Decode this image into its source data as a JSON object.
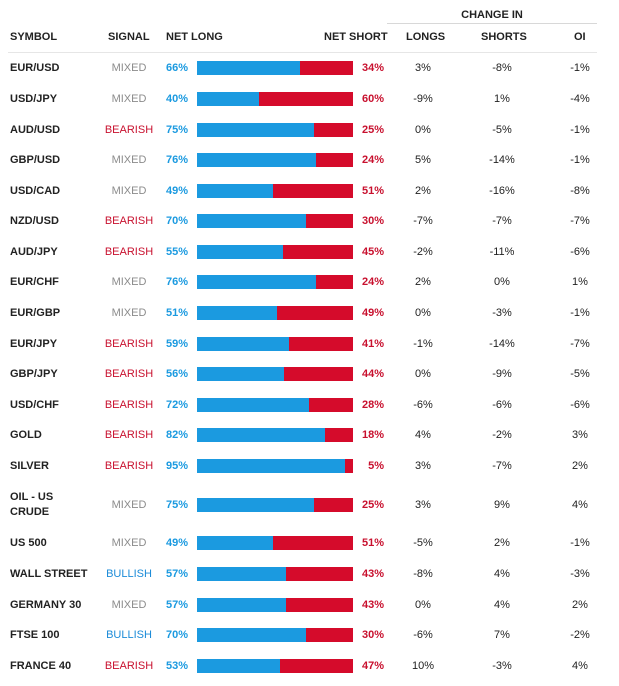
{
  "header": {
    "change_in": "CHANGE IN",
    "symbol": "SYMBOL",
    "signal": "SIGNAL",
    "net_long": "NET LONG",
    "net_short": "NET SHORT",
    "longs": "LONGS",
    "shorts": "SHORTS",
    "oi": "OI"
  },
  "colors": {
    "long": "#1b9ae0",
    "short": "#d50b2b",
    "bearish": "#c8102e",
    "bullish": "#1b8bd8",
    "mixed": "#8b8b8b"
  },
  "rows": [
    {
      "symbol": "EUR/USD",
      "signal": "MIXED",
      "net_long": "66%",
      "net_long_value": 66,
      "net_short": "34%",
      "longs": "3%",
      "shorts": "-8%",
      "oi": "-1%"
    },
    {
      "symbol": "USD/JPY",
      "signal": "MIXED",
      "net_long": "40%",
      "net_long_value": 40,
      "net_short": "60%",
      "longs": "-9%",
      "shorts": "1%",
      "oi": "-4%"
    },
    {
      "symbol": "AUD/USD",
      "signal": "BEARISH",
      "net_long": "75%",
      "net_long_value": 75,
      "net_short": "25%",
      "longs": "0%",
      "shorts": "-5%",
      "oi": "-1%"
    },
    {
      "symbol": "GBP/USD",
      "signal": "MIXED",
      "net_long": "76%",
      "net_long_value": 76,
      "net_short": "24%",
      "longs": "5%",
      "shorts": "-14%",
      "oi": "-1%"
    },
    {
      "symbol": "USD/CAD",
      "signal": "MIXED",
      "net_long": "49%",
      "net_long_value": 49,
      "net_short": "51%",
      "longs": "2%",
      "shorts": "-16%",
      "oi": "-8%"
    },
    {
      "symbol": "NZD/USD",
      "signal": "BEARISH",
      "net_long": "70%",
      "net_long_value": 70,
      "net_short": "30%",
      "longs": "-7%",
      "shorts": "-7%",
      "oi": "-7%"
    },
    {
      "symbol": "AUD/JPY",
      "signal": "BEARISH",
      "net_long": "55%",
      "net_long_value": 55,
      "net_short": "45%",
      "longs": "-2%",
      "shorts": "-11%",
      "oi": "-6%"
    },
    {
      "symbol": "EUR/CHF",
      "signal": "MIXED",
      "net_long": "76%",
      "net_long_value": 76,
      "net_short": "24%",
      "longs": "2%",
      "shorts": "0%",
      "oi": "1%"
    },
    {
      "symbol": "EUR/GBP",
      "signal": "MIXED",
      "net_long": "51%",
      "net_long_value": 51,
      "net_short": "49%",
      "longs": "0%",
      "shorts": "-3%",
      "oi": "-1%"
    },
    {
      "symbol": "EUR/JPY",
      "signal": "BEARISH",
      "net_long": "59%",
      "net_long_value": 59,
      "net_short": "41%",
      "longs": "-1%",
      "shorts": "-14%",
      "oi": "-7%"
    },
    {
      "symbol": "GBP/JPY",
      "signal": "BEARISH",
      "net_long": "56%",
      "net_long_value": 56,
      "net_short": "44%",
      "longs": "0%",
      "shorts": "-9%",
      "oi": "-5%"
    },
    {
      "symbol": "USD/CHF",
      "signal": "BEARISH",
      "net_long": "72%",
      "net_long_value": 72,
      "net_short": "28%",
      "longs": "-6%",
      "shorts": "-6%",
      "oi": "-6%"
    },
    {
      "symbol": "GOLD",
      "signal": "BEARISH",
      "net_long": "82%",
      "net_long_value": 82,
      "net_short": "18%",
      "longs": "4%",
      "shorts": "-2%",
      "oi": "3%"
    },
    {
      "symbol": "SILVER",
      "signal": "BEARISH",
      "net_long": "95%",
      "net_long_value": 95,
      "net_short": "5%",
      "longs": "3%",
      "shorts": "-7%",
      "oi": "2%"
    },
    {
      "symbol": "OIL - US CRUDE",
      "signal": "MIXED",
      "net_long": "75%",
      "net_long_value": 75,
      "net_short": "25%",
      "longs": "3%",
      "shorts": "9%",
      "oi": "4%"
    },
    {
      "symbol": "US 500",
      "signal": "MIXED",
      "net_long": "49%",
      "net_long_value": 49,
      "net_short": "51%",
      "longs": "-5%",
      "shorts": "2%",
      "oi": "-1%"
    },
    {
      "symbol": "WALL STREET",
      "signal": "BULLISH",
      "net_long": "57%",
      "net_long_value": 57,
      "net_short": "43%",
      "longs": "-8%",
      "shorts": "4%",
      "oi": "-3%"
    },
    {
      "symbol": "GERMANY 30",
      "signal": "MIXED",
      "net_long": "57%",
      "net_long_value": 57,
      "net_short": "43%",
      "longs": "0%",
      "shorts": "4%",
      "oi": "2%"
    },
    {
      "symbol": "FTSE 100",
      "signal": "BULLISH",
      "net_long": "70%",
      "net_long_value": 70,
      "net_short": "30%",
      "longs": "-6%",
      "shorts": "7%",
      "oi": "-2%"
    },
    {
      "symbol": "FRANCE 40",
      "signal": "BEARISH",
      "net_long": "53%",
      "net_long_value": 53,
      "net_short": "47%",
      "longs": "10%",
      "shorts": "-3%",
      "oi": "4%"
    }
  ]
}
